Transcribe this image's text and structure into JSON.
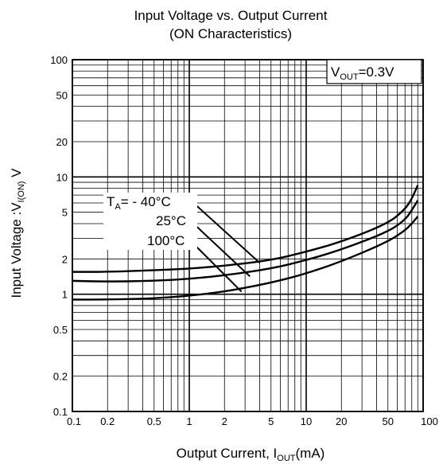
{
  "chart_data": {
    "type": "line",
    "title": "Input Voltage vs. Output Current",
    "subtitle": "(ON Characteristics)",
    "xlabel": {
      "main": "Output Current, I",
      "sub": "OUT",
      "tail": "(mA)"
    },
    "ylabel": {
      "main": "Input Voltage :V",
      "sub": "I(ON)",
      "tail": " V"
    },
    "x_scale": "log",
    "y_scale": "log",
    "xlim": [
      0.1,
      100
    ],
    "ylim": [
      0.1,
      100
    ],
    "grid": true,
    "x_ticks": [
      "0.1",
      "0.2",
      "0.5",
      "1",
      "2",
      "5",
      "10",
      "20",
      "50",
      "100"
    ],
    "y_ticks": [
      "0.1",
      "0.2",
      "0.5",
      "1",
      "2",
      "5",
      "10",
      "20",
      "50",
      "100"
    ],
    "condition": {
      "main": "V",
      "sub": "OUT",
      "tail": "=0.3V"
    },
    "series": [
      {
        "name": "T_A = -40°C",
        "x": [
          0.1,
          0.2,
          0.5,
          1,
          2,
          5,
          10,
          20,
          50,
          70,
          80,
          90
        ],
        "y": [
          1.55,
          1.55,
          1.6,
          1.65,
          1.75,
          1.95,
          2.3,
          2.8,
          4.0,
          5.3,
          6.5,
          8.5
        ]
      },
      {
        "name": "T_A = 25°C",
        "x": [
          0.1,
          0.2,
          0.5,
          1,
          2,
          5,
          10,
          20,
          50,
          70,
          80,
          90
        ],
        "y": [
          1.3,
          1.28,
          1.3,
          1.35,
          1.45,
          1.65,
          1.95,
          2.4,
          3.4,
          4.3,
          5.2,
          6.3
        ]
      },
      {
        "name": "T_A = 100°C",
        "x": [
          0.1,
          0.2,
          0.5,
          1,
          2,
          5,
          10,
          20,
          50,
          70,
          80,
          90
        ],
        "y": [
          0.9,
          0.9,
          0.92,
          0.97,
          1.05,
          1.25,
          1.5,
          1.9,
          2.8,
          3.5,
          4.0,
          4.6
        ]
      }
    ],
    "labels": [
      {
        "main": "T",
        "sub": "A",
        "tail": "= - 40°C"
      },
      {
        "text": "25°C"
      },
      {
        "text": "100°C"
      }
    ]
  }
}
